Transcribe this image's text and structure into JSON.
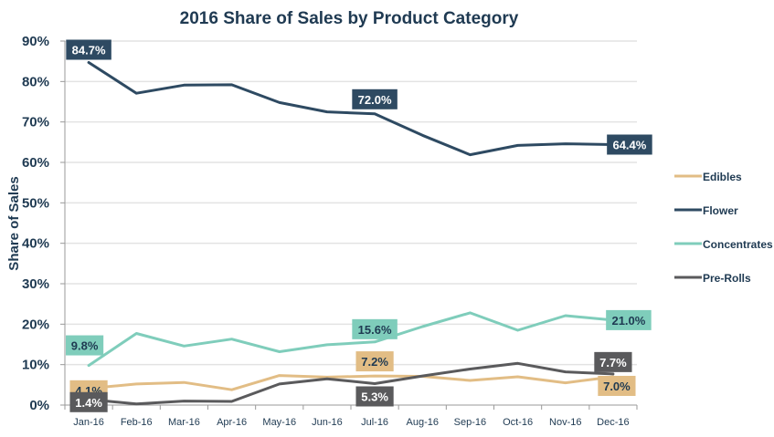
{
  "chart_data": {
    "type": "line",
    "title": "2016 Share of Sales by Product Category",
    "xlabel": "",
    "ylabel": "Share of Sales",
    "ylim": [
      0,
      90
    ],
    "yticks": [
      0,
      10,
      20,
      30,
      40,
      50,
      60,
      70,
      80,
      90
    ],
    "ytick_labels": [
      "0%",
      "10%",
      "20%",
      "30%",
      "40%",
      "50%",
      "60%",
      "70%",
      "80%",
      "90%"
    ],
    "grid": true,
    "legend_position": "right",
    "categories": [
      "Jan-16",
      "Feb-16",
      "Mar-16",
      "Apr-16",
      "May-16",
      "Jun-16",
      "Jul-16",
      "Aug-16",
      "Sep-16",
      "Oct-16",
      "Nov-16",
      "Dec-16"
    ],
    "series": [
      {
        "name": "Edibles",
        "color": "#e2bd85",
        "label_text_color": "#1f3a52",
        "values": [
          4.1,
          5.2,
          5.6,
          3.8,
          7.3,
          6.9,
          7.2,
          7.1,
          6.1,
          7.0,
          5.5,
          7.0
        ],
        "data_labels": [
          {
            "index": 0,
            "text": "4.1%"
          },
          {
            "index": 6,
            "text": "7.2%"
          },
          {
            "index": 11,
            "text": "7.0%"
          }
        ]
      },
      {
        "name": "Flower",
        "color": "#2e4a62",
        "label_text_color": "#ffffff",
        "values": [
          84.7,
          77.1,
          79.1,
          79.2,
          74.8,
          72.5,
          72.0,
          66.7,
          61.9,
          64.2,
          64.6,
          64.4
        ],
        "data_labels": [
          {
            "index": 0,
            "text": "84.7%"
          },
          {
            "index": 6,
            "text": "72.0%"
          },
          {
            "index": 11,
            "text": "64.4%"
          }
        ]
      },
      {
        "name": "Concentrates",
        "color": "#7fcdbb",
        "label_text_color": "#1f3a52",
        "values": [
          9.8,
          17.7,
          14.6,
          16.3,
          13.2,
          14.9,
          15.6,
          19.4,
          22.8,
          18.5,
          22.1,
          21.0
        ],
        "data_labels": [
          {
            "index": 0,
            "text": "9.8%"
          },
          {
            "index": 6,
            "text": "15.6%"
          },
          {
            "index": 11,
            "text": "21.0%"
          }
        ]
      },
      {
        "name": "Pre-Rolls",
        "color": "#5a5a5c",
        "label_text_color": "#ffffff",
        "values": [
          1.4,
          0.3,
          1.0,
          0.9,
          5.2,
          6.5,
          5.3,
          7.2,
          8.9,
          10.3,
          8.2,
          7.7
        ],
        "data_labels": [
          {
            "index": 0,
            "text": "1.4%"
          },
          {
            "index": 6,
            "text": "5.3%"
          },
          {
            "index": 11,
            "text": "7.7%"
          }
        ]
      }
    ]
  }
}
